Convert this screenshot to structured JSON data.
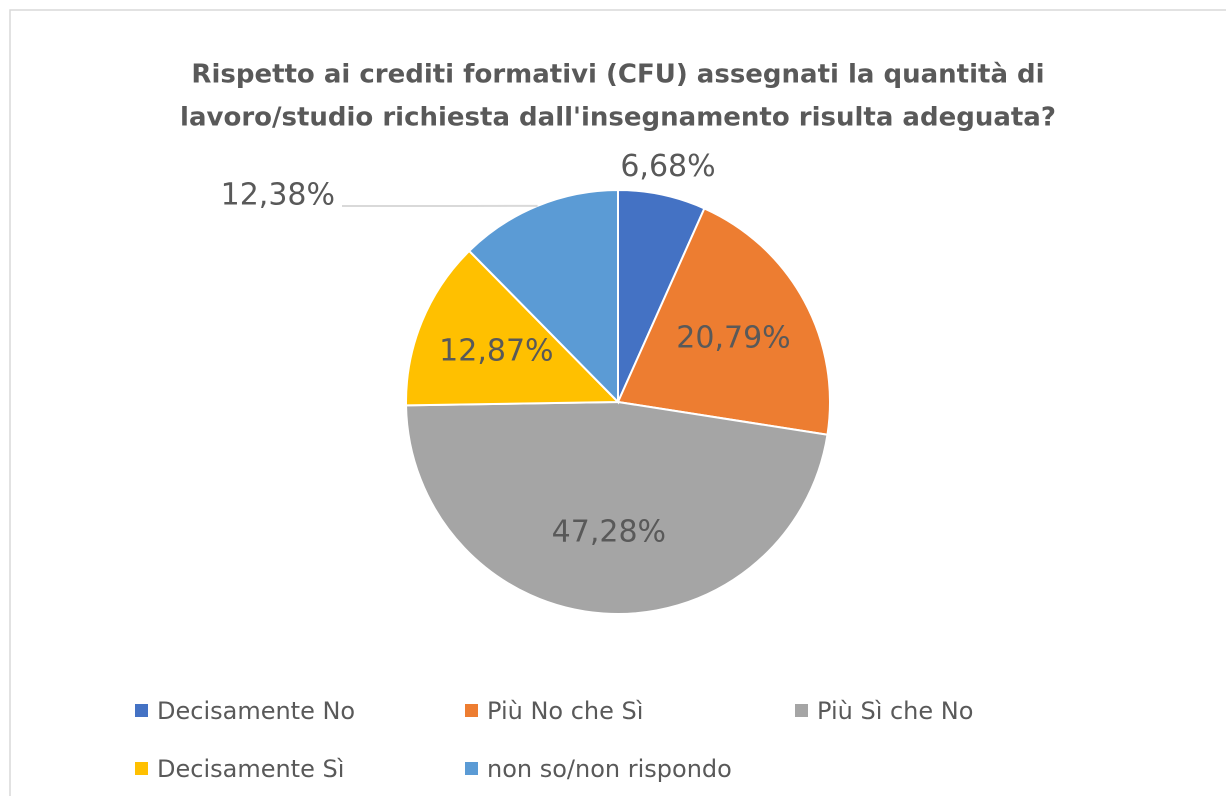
{
  "chart_data": {
    "type": "pie",
    "title": "Rispetto ai crediti formativi (CFU) assegnati la quantità di lavoro/studio richiesta dall'insegnamento risulta adeguata?",
    "title_lines": [
      "Rispetto ai crediti formativi (CFU) assegnati la quantità di",
      "lavoro/studio richiesta dall'insegnamento risulta adeguata?"
    ],
    "categories": [
      "Decisamente No",
      "Più No che Sì",
      "Più Sì che No",
      "Decisamente Sì",
      "non so/non rispondo"
    ],
    "values": [
      6.68,
      20.79,
      47.28,
      12.87,
      12.38
    ],
    "value_labels": [
      "6,68%",
      "20,79%",
      "47,28%",
      "12,87%",
      "12,38%"
    ],
    "colors": [
      "#4472c4",
      "#ed7d31",
      "#a5a5a5",
      "#ffc000",
      "#5b9bd5"
    ],
    "legend": "bottom"
  }
}
